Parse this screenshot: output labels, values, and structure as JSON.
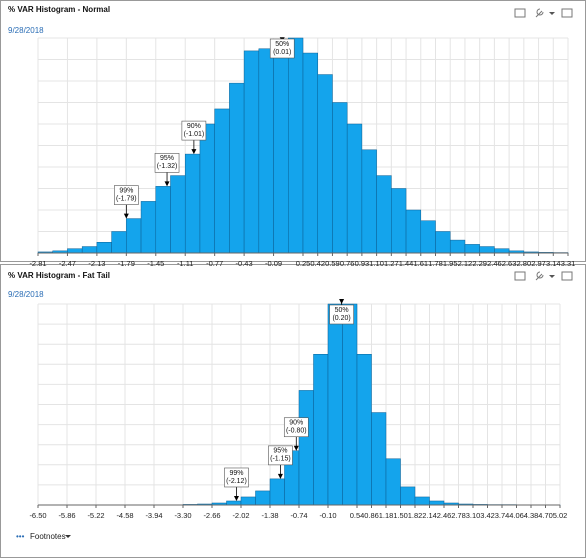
{
  "chart_data": [
    {
      "type": "histogram",
      "title": "% VAR Histogram - Normal",
      "subtitle": "9/28/2018",
      "color": "#14a4ec",
      "grid": true,
      "bins": [
        -2.81,
        -2.64,
        -2.47,
        -2.3,
        -2.13,
        -1.96,
        -1.79,
        -1.62,
        -1.45,
        -1.28,
        -1.11,
        -0.94,
        -0.77,
        -0.6,
        -0.43,
        -0.26,
        -0.09,
        0.08,
        0.25,
        0.42,
        0.59,
        0.76,
        0.93,
        1.1,
        1.27,
        1.44,
        1.61,
        1.78,
        1.95,
        2.12,
        2.29,
        2.46,
        2.63,
        2.8,
        2.97,
        3.14,
        3.31
      ],
      "values": [
        0.5,
        1,
        2,
        3,
        5,
        10,
        16,
        24,
        31,
        36,
        46,
        60,
        67,
        79,
        94,
        95,
        98,
        100,
        93,
        83,
        70,
        60,
        48,
        36,
        30,
        20,
        15,
        10,
        6,
        4,
        3,
        2,
        1,
        0.5,
        0.3,
        0.2
      ],
      "xlim": [
        -2.81,
        3.31
      ],
      "ylim": [
        0,
        100
      ],
      "xticks": [
        -2.81,
        -2.47,
        -2.13,
        -1.79,
        -1.45,
        -1.11,
        -0.77,
        -0.43,
        -0.09,
        0.25,
        0.42,
        0.59,
        0.76,
        0.93,
        {
          "value": 1.1,
          "label": "1.10"
        },
        1.27,
        1.44,
        1.61,
        1.78,
        1.95,
        2.12,
        2.29,
        2.46,
        2.63,
        {
          "value": 2.8,
          "label": "2.80"
        },
        2.97,
        3.14,
        3.31
      ],
      "annotations": [
        {
          "text": "50%",
          "label": "(0.01)",
          "x": 0.01
        },
        {
          "text": "90%",
          "label": "(-1.01)",
          "x": -1.01
        },
        {
          "text": "95%",
          "label": "(-1.32)",
          "x": -1.32
        },
        {
          "text": "99%",
          "label": "(-1.79)",
          "x": -1.79
        }
      ]
    },
    {
      "type": "histogram",
      "title": "% VAR Histogram - Fat Tail",
      "subtitle": "9/28/2018",
      "color": "#14a4ec",
      "grid": true,
      "bins": [
        -6.5,
        -6.18,
        -5.86,
        -5.54,
        -5.22,
        -4.9,
        -4.58,
        -4.26,
        -3.94,
        -3.62,
        -3.3,
        -2.98,
        -2.66,
        -2.34,
        -2.02,
        -1.7,
        -1.38,
        -1.06,
        -0.74,
        -0.42,
        -0.1,
        0.22,
        0.54,
        0.86,
        1.18,
        1.5,
        1.82,
        2.14,
        2.46,
        2.78,
        3.1,
        3.42,
        3.74,
        4.06,
        4.38,
        4.7,
        5.02
      ],
      "values": [
        0,
        0,
        0,
        0,
        0,
        0,
        0,
        0,
        0.1,
        0.1,
        0.3,
        0.5,
        1,
        2,
        4,
        7,
        13,
        27,
        57,
        75,
        100,
        100,
        75,
        46,
        23,
        9,
        4,
        2,
        1,
        0.5,
        0.3,
        0.2,
        0.2,
        0.1,
        0.1,
        0.1
      ],
      "xlim": [
        -6.5,
        5.02
      ],
      "ylim": [
        0,
        100
      ],
      "xticks": [
        {
          "value": -6.5,
          "label": "-6.50"
        },
        -5.86,
        -5.22,
        -4.58,
        -3.94,
        {
          "value": -3.3,
          "label": "-3.30"
        },
        -2.66,
        -2.02,
        -1.38,
        -0.74,
        {
          "value": -0.1,
          "label": "-0.10"
        },
        0.54,
        0.86,
        1.18,
        {
          "value": 1.5,
          "label": "1.50"
        },
        1.82,
        2.14,
        2.46,
        2.78,
        {
          "value": 3.1,
          "label": "3.10"
        },
        3.42,
        3.74,
        4.06,
        4.38,
        {
          "value": 4.7,
          "label": "4.70"
        },
        5.02
      ],
      "annotations": [
        {
          "text": "50%",
          "label": "(0.20)",
          "x": 0.2
        },
        {
          "text": "90%",
          "label": "(-0.80)",
          "x": -0.8
        },
        {
          "text": "95%",
          "label": "(-1.15)",
          "x": -1.15
        },
        {
          "text": "99%",
          "label": "(-2.12)",
          "x": -2.12
        }
      ]
    }
  ],
  "footnotes": "Footnotes"
}
